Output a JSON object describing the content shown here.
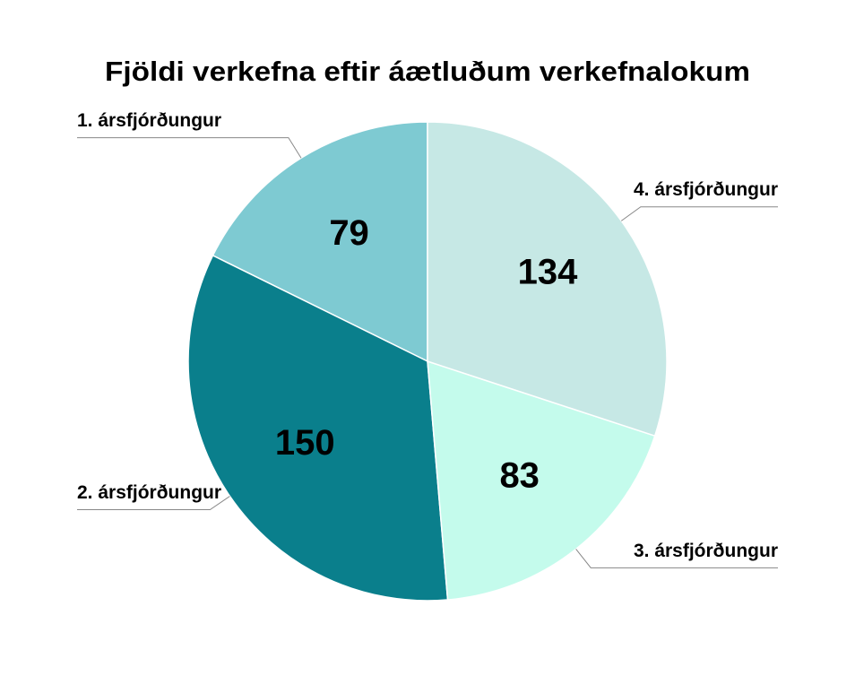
{
  "chart_data": {
    "type": "pie",
    "title": "Fjöldi verkefna eftir áætluðum verkefnalokum",
    "categories": [
      "1. ársfjórðungur",
      "2. ársfjórðungur",
      "3. ársfjórðungur",
      "4. ársfjórðungur"
    ],
    "values": [
      79,
      150,
      83,
      134
    ],
    "colors": [
      "#7ecad2",
      "#0a7f8c",
      "#c4fbec",
      "#c6e8e5"
    ]
  }
}
